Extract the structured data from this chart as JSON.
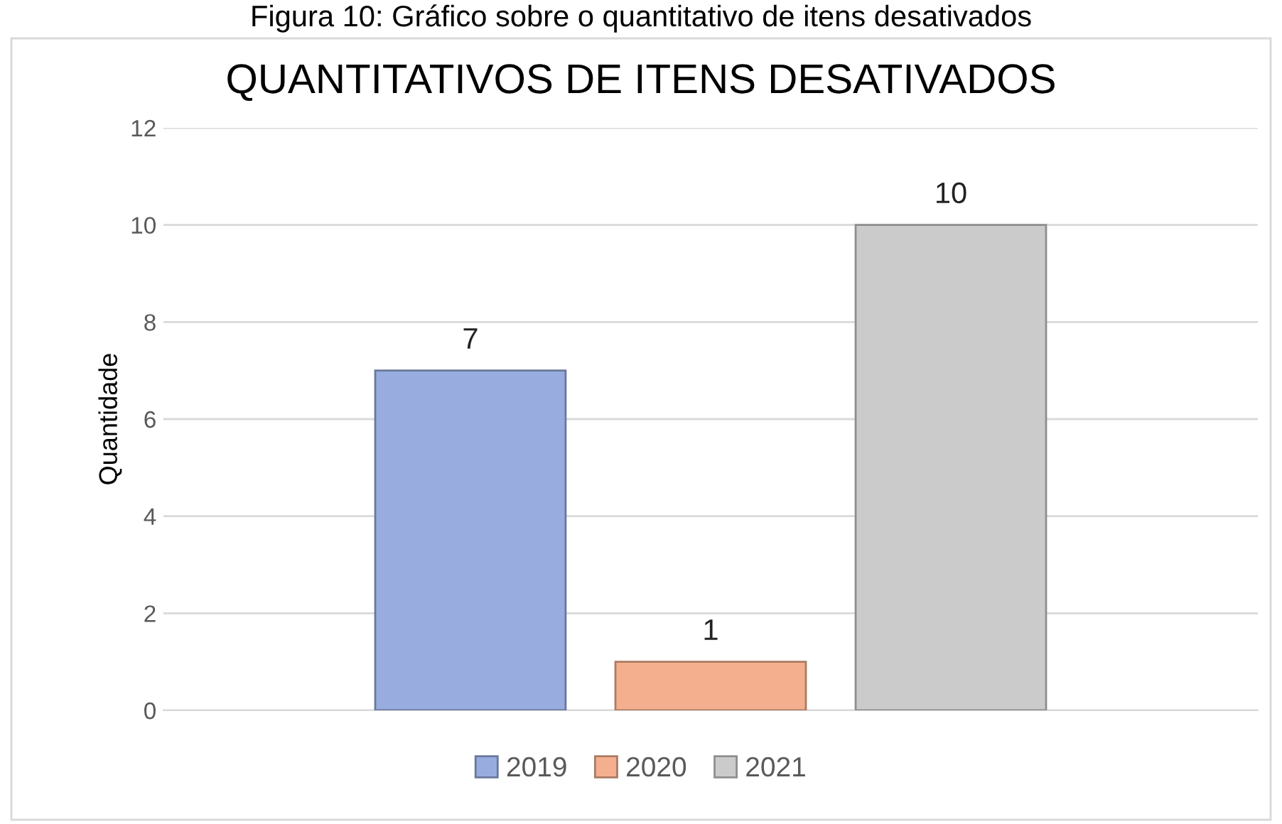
{
  "chart_data": {
    "type": "bar",
    "title": "QUANTITATIVOS DE ITENS DESATIVADOS",
    "annotations": [
      "Figura 10: Gráfico sobre o quantitativo de itens desativados"
    ],
    "ylabel": "Quantidade",
    "categories": [
      null
    ],
    "series": [
      {
        "name": "2019",
        "color": "#98acdf",
        "values": [
          7
        ]
      },
      {
        "name": "2020",
        "color": "#f4b08e",
        "values": [
          1
        ]
      },
      {
        "name": "2021",
        "color": "#cbcbcb",
        "values": [
          10
        ]
      }
    ],
    "ylim": [
      0,
      12
    ],
    "yticks": [
      0,
      2,
      4,
      6,
      8,
      10,
      12
    ],
    "grid": "y",
    "legend": "bottom",
    "data_labels": true
  }
}
